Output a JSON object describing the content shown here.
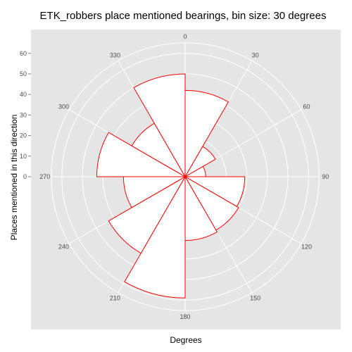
{
  "chart_data": {
    "type": "polar-bar",
    "title": "ETK_robbers place mentioned bearings, bin size: 30 degrees",
    "xlabel": "Degrees",
    "ylabel": "Places mentioned in this direction",
    "angle_ticks": [
      "0",
      "30",
      "60",
      "90",
      "120",
      "150",
      "180",
      "210",
      "240",
      "270",
      "300",
      "330"
    ],
    "radial_ticks": [
      "0",
      "10",
      "20",
      "30",
      "40",
      "50",
      "60"
    ],
    "rlim": [
      0,
      60
    ],
    "bin_size_degrees": 30,
    "bins": [
      {
        "start": 0,
        "end": 30,
        "value": 42
      },
      {
        "start": 30,
        "end": 60,
        "value": 17
      },
      {
        "start": 60,
        "end": 90,
        "value": 10
      },
      {
        "start": 90,
        "end": 120,
        "value": 29
      },
      {
        "start": 120,
        "end": 150,
        "value": 30
      },
      {
        "start": 150,
        "end": 180,
        "value": 31
      },
      {
        "start": 180,
        "end": 210,
        "value": 59
      },
      {
        "start": 210,
        "end": 240,
        "value": 43
      },
      {
        "start": 240,
        "end": 270,
        "value": 30
      },
      {
        "start": 270,
        "end": 300,
        "value": 43
      },
      {
        "start": 300,
        "end": 330,
        "value": 30
      },
      {
        "start": 330,
        "end": 360,
        "value": 50
      }
    ],
    "colors": {
      "panel_background": "#e5e5e5",
      "grid": "#ffffff",
      "bar_fill": "#ffffff",
      "bar_outline": "#ff0000",
      "tick_text": "#4d4d4d"
    },
    "grid": true,
    "legend": "none"
  }
}
